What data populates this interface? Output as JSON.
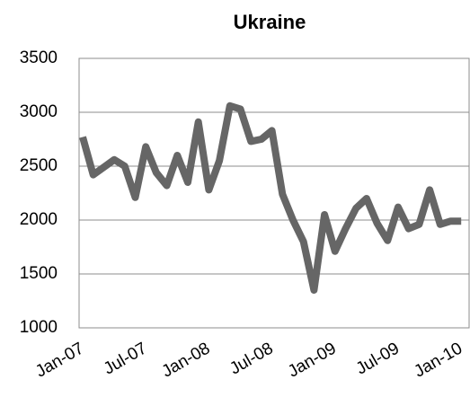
{
  "chart_data": {
    "type": "line",
    "title": "Ukraine",
    "categories": [
      "Jan-07",
      null,
      null,
      null,
      null,
      null,
      "Jul-07",
      null,
      null,
      null,
      null,
      null,
      "Jan-08",
      null,
      null,
      null,
      null,
      null,
      "Jul-08",
      null,
      null,
      null,
      null,
      null,
      "Jan-09",
      null,
      null,
      null,
      null,
      null,
      "Jul-09",
      null,
      null,
      null,
      null,
      null,
      "Jan-10"
    ],
    "series": [
      {
        "name": "Ukraine",
        "color": "#666666",
        "values": [
          2770,
          2420,
          2490,
          2560,
          2500,
          2210,
          2680,
          2440,
          2320,
          2600,
          2350,
          2910,
          2280,
          2550,
          3060,
          3030,
          2730,
          2750,
          2830,
          2240,
          2000,
          1800,
          1350,
          2050,
          1710,
          1920,
          2110,
          2200,
          1970,
          1810,
          2120,
          1920,
          1960,
          2280,
          1960,
          1990,
          1990
        ]
      }
    ],
    "ylim": [
      1000,
      3500
    ],
    "yticks": [
      1000,
      1500,
      2000,
      2500,
      3000,
      3500
    ],
    "grid": true
  }
}
